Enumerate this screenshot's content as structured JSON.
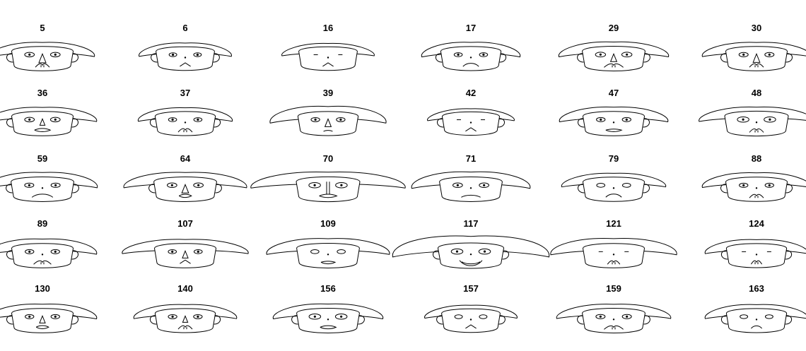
{
  "chart_data": {
    "type": "chernoff-faces",
    "title": "",
    "grid": {
      "rows": 5,
      "cols": 6
    },
    "faces": [
      {
        "label": "5",
        "hat_width": 0.45,
        "hat_height": 0.3,
        "face_width": 0.45,
        "eye_size": 0.55,
        "pupil": true,
        "nose_size": 0.75,
        "nose_shape": "triangle",
        "mouth_curve": -0.3,
        "mouth_width": 0.25,
        "mouth_style": "mustache",
        "ears": true
      },
      {
        "label": "6",
        "hat_width": 0.35,
        "hat_height": 0.25,
        "face_width": 0.38,
        "eye_size": 0.35,
        "pupil": true,
        "nose_size": 0.2,
        "nose_shape": "dot",
        "mouth_curve": -0.5,
        "mouth_width": 0.15,
        "mouth_style": "peak",
        "ears": true
      },
      {
        "label": "16",
        "hat_width": 0.35,
        "hat_height": 0.15,
        "face_width": 0.38,
        "eye_size": 0.0,
        "pupil": false,
        "nose_size": 0.1,
        "nose_shape": "dot",
        "mouth_curve": -0.5,
        "mouth_width": 0.15,
        "mouth_style": "peak",
        "ears": false
      },
      {
        "label": "17",
        "hat_width": 0.4,
        "hat_height": 0.35,
        "face_width": 0.42,
        "eye_size": 0.4,
        "pupil": true,
        "nose_size": 0.2,
        "nose_shape": "dot",
        "mouth_curve": -0.6,
        "mouth_width": 0.3,
        "mouth_style": "curve",
        "ears": true
      },
      {
        "label": "29",
        "hat_width": 0.5,
        "hat_height": 0.35,
        "face_width": 0.48,
        "eye_size": 0.6,
        "pupil": true,
        "nose_size": 0.6,
        "nose_shape": "triangle",
        "mouth_curve": -0.4,
        "mouth_width": 0.4,
        "mouth_style": "mustache",
        "ears": true
      },
      {
        "label": "30",
        "hat_width": 0.5,
        "hat_height": 0.3,
        "face_width": 0.45,
        "eye_size": 0.5,
        "pupil": true,
        "nose_size": 0.7,
        "nose_shape": "triangle",
        "mouth_curve": -0.3,
        "mouth_width": 0.25,
        "mouth_style": "mustache",
        "ears": true
      },
      {
        "label": "36",
        "hat_width": 0.5,
        "hat_height": 0.3,
        "face_width": 0.45,
        "eye_size": 0.55,
        "pupil": true,
        "nose_size": 0.4,
        "nose_shape": "triangle",
        "mouth_curve": -0.4,
        "mouth_width": 0.3,
        "mouth_style": "lips",
        "ears": true
      },
      {
        "label": "37",
        "hat_width": 0.35,
        "hat_height": 0.25,
        "face_width": 0.42,
        "eye_size": 0.4,
        "pupil": true,
        "nose_size": 0.15,
        "nose_shape": "dot",
        "mouth_curve": -0.3,
        "mouth_width": 0.25,
        "mouth_style": "mustache",
        "ears": true
      },
      {
        "label": "39",
        "hat_width": 0.6,
        "hat_height": 0.55,
        "face_width": 0.42,
        "eye_size": 0.45,
        "pupil": true,
        "nose_size": 0.6,
        "nose_shape": "triangle",
        "mouth_curve": -0.2,
        "mouth_width": 0.1,
        "mouth_style": "curve",
        "ears": false
      },
      {
        "label": "42",
        "hat_width": 0.3,
        "hat_height": 0.12,
        "face_width": 0.35,
        "eye_size": 0.0,
        "pupil": false,
        "nose_size": 0.1,
        "nose_shape": "dot",
        "mouth_curve": -0.4,
        "mouth_width": 0.15,
        "mouth_style": "peak",
        "ears": true
      },
      {
        "label": "47",
        "hat_width": 0.5,
        "hat_height": 0.35,
        "face_width": 0.45,
        "eye_size": 0.45,
        "pupil": true,
        "nose_size": 0.2,
        "nose_shape": "dot",
        "mouth_curve": 0.0,
        "mouth_width": 0.3,
        "mouth_style": "lips",
        "ears": true
      },
      {
        "label": "48",
        "hat_width": 0.55,
        "hat_height": 0.3,
        "face_width": 0.5,
        "eye_size": 0.75,
        "pupil": true,
        "nose_size": 0.2,
        "nose_shape": "dot",
        "mouth_curve": -0.3,
        "mouth_width": 0.25,
        "mouth_style": "mustache",
        "ears": false
      },
      {
        "label": "59",
        "hat_width": 0.5,
        "hat_height": 0.4,
        "face_width": 0.48,
        "eye_size": 0.5,
        "pupil": true,
        "nose_size": 0.2,
        "nose_shape": "dot",
        "mouth_curve": -0.6,
        "mouth_width": 0.45,
        "mouth_style": "curve",
        "ears": true
      },
      {
        "label": "64",
        "hat_width": 0.65,
        "hat_height": 0.4,
        "face_width": 0.48,
        "eye_size": 0.55,
        "pupil": true,
        "nose_size": 0.7,
        "nose_shape": "triangle",
        "mouth_curve": -0.3,
        "mouth_width": 0.2,
        "mouth_style": "lips",
        "ears": true
      },
      {
        "label": "70",
        "hat_width": 1.0,
        "hat_height": 0.45,
        "face_width": 0.5,
        "eye_size": 0.75,
        "pupil": true,
        "nose_size": 0.9,
        "nose_shape": "long",
        "mouth_curve": -0.4,
        "mouth_width": 0.35,
        "mouth_style": "lips",
        "ears": false
      },
      {
        "label": "71",
        "hat_width": 0.6,
        "hat_height": 0.5,
        "face_width": 0.48,
        "eye_size": 0.55,
        "pupil": true,
        "nose_size": 0.2,
        "nose_shape": "dot",
        "mouth_curve": -0.4,
        "mouth_width": 0.4,
        "mouth_style": "curve",
        "ears": false
      },
      {
        "label": "79",
        "hat_width": 0.45,
        "hat_height": 0.25,
        "face_width": 0.45,
        "eye_size": 0.4,
        "pupil": false,
        "nose_size": 0.2,
        "nose_shape": "dot",
        "mouth_curve": -0.6,
        "mouth_width": 0.3,
        "mouth_style": "curve",
        "ears": true
      },
      {
        "label": "88",
        "hat_width": 0.5,
        "hat_height": 0.35,
        "face_width": 0.45,
        "eye_size": 0.45,
        "pupil": true,
        "nose_size": 0.2,
        "nose_shape": "dot",
        "mouth_curve": -0.3,
        "mouth_width": 0.25,
        "mouth_style": "mustache",
        "ears": true
      },
      {
        "label": "89",
        "hat_width": 0.5,
        "hat_height": 0.4,
        "face_width": 0.45,
        "eye_size": 0.45,
        "pupil": true,
        "nose_size": 0.2,
        "nose_shape": "dot",
        "mouth_curve": -0.4,
        "mouth_width": 0.35,
        "mouth_style": "mustache",
        "ears": true
      },
      {
        "label": "107",
        "hat_width": 0.7,
        "hat_height": 0.3,
        "face_width": 0.45,
        "eye_size": 0.4,
        "pupil": true,
        "nose_size": 0.5,
        "nose_shape": "triangle",
        "mouth_curve": -0.4,
        "mouth_width": 0.15,
        "mouth_style": "peak",
        "ears": false
      },
      {
        "label": "109",
        "hat_width": 0.65,
        "hat_height": 0.45,
        "face_width": 0.48,
        "eye_size": 0.4,
        "pupil": false,
        "nose_size": 0.2,
        "nose_shape": "dot",
        "mouth_curve": 0.0,
        "mouth_width": 0.25,
        "mouth_style": "lips",
        "ears": false
      },
      {
        "label": "117",
        "hat_width": 1.0,
        "hat_height": 0.9,
        "face_width": 0.55,
        "eye_size": 0.75,
        "pupil": true,
        "nose_size": 0.15,
        "nose_shape": "dot",
        "mouth_curve": 0.7,
        "mouth_width": 0.5,
        "mouth_style": "smile",
        "ears": true
      },
      {
        "label": "121",
        "hat_width": 0.7,
        "hat_height": 0.5,
        "face_width": 0.45,
        "eye_size": 0.0,
        "pupil": false,
        "nose_size": 0.15,
        "nose_shape": "dot",
        "mouth_curve": -0.3,
        "mouth_width": 0.2,
        "mouth_style": "mustache",
        "ears": false
      },
      {
        "label": "124",
        "hat_width": 0.45,
        "hat_height": 0.3,
        "face_width": 0.42,
        "eye_size": 0.0,
        "pupil": false,
        "nose_size": 0.1,
        "nose_shape": "dot",
        "mouth_curve": -0.4,
        "mouth_width": 0.15,
        "mouth_style": "mustache",
        "ears": true
      },
      {
        "label": "130",
        "hat_width": 0.5,
        "hat_height": 0.35,
        "face_width": 0.45,
        "eye_size": 0.45,
        "pupil": true,
        "nose_size": 0.5,
        "nose_shape": "triangle",
        "mouth_curve": -0.3,
        "mouth_width": 0.2,
        "mouth_style": "lips",
        "ears": true
      },
      {
        "label": "140",
        "hat_width": 0.45,
        "hat_height": 0.3,
        "face_width": 0.42,
        "eye_size": 0.45,
        "pupil": true,
        "nose_size": 0.4,
        "nose_shape": "triangle",
        "mouth_curve": -0.3,
        "mouth_width": 0.25,
        "mouth_style": "mustache",
        "ears": true
      },
      {
        "label": "156",
        "hat_width": 0.5,
        "hat_height": 0.35,
        "face_width": 0.48,
        "eye_size": 0.75,
        "pupil": true,
        "nose_size": 0.2,
        "nose_shape": "dot",
        "mouth_curve": -0.3,
        "mouth_width": 0.3,
        "mouth_style": "lips",
        "ears": true
      },
      {
        "label": "157",
        "hat_width": 0.35,
        "hat_height": 0.2,
        "face_width": 0.38,
        "eye_size": 0.35,
        "pupil": false,
        "nose_size": 0.15,
        "nose_shape": "dot",
        "mouth_curve": -0.5,
        "mouth_width": 0.15,
        "mouth_style": "peak",
        "ears": true
      },
      {
        "label": "159",
        "hat_width": 0.55,
        "hat_height": 0.3,
        "face_width": 0.48,
        "eye_size": 0.5,
        "pupil": true,
        "nose_size": 0.15,
        "nose_shape": "dot",
        "mouth_curve": -0.4,
        "mouth_width": 0.4,
        "mouth_style": "mustache",
        "ears": true
      },
      {
        "label": "163",
        "hat_width": 0.45,
        "hat_height": 0.3,
        "face_width": 0.42,
        "eye_size": 0.35,
        "pupil": false,
        "nose_size": 0.2,
        "nose_shape": "dot",
        "mouth_curve": -0.5,
        "mouth_width": 0.15,
        "mouth_style": "curve",
        "ears": true
      }
    ]
  }
}
